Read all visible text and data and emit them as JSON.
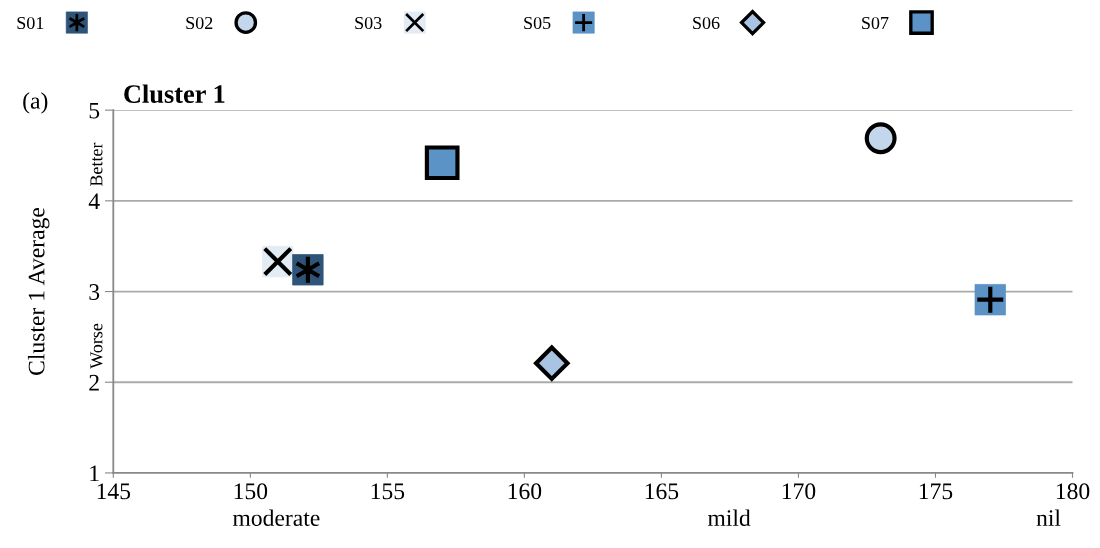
{
  "chart_data": {
    "type": "scatter",
    "title": "Cluster 1",
    "ylabel": "Cluster 1 Average",
    "annotations": [
      "(a)",
      "Better",
      "Worse",
      "moderate",
      "mild",
      "nil"
    ],
    "series": [
      {
        "name": "S01",
        "color": "#2f5479",
        "marker": "square",
        "x": [
          152.1
        ],
        "values": [
          3.24
        ]
      },
      {
        "name": "S02",
        "color": "#c3d6eb",
        "marker": "circle",
        "x": [
          173
        ],
        "values": [
          4.69
        ]
      },
      {
        "name": "S03",
        "color": "#e3ebf4",
        "marker": "square",
        "x": [
          151
        ],
        "values": [
          3.33
        ]
      },
      {
        "name": "S05",
        "color": "#5b93c7",
        "marker": "square",
        "x": [
          177
        ],
        "values": [
          2.91
        ]
      },
      {
        "name": "S06",
        "color": "#a9c4e2",
        "marker": "diamond",
        "x": [
          161
        ],
        "values": [
          2.21
        ]
      },
      {
        "name": "S07",
        "color": "#5b93c7",
        "marker": "square",
        "x": [
          157
        ],
        "values": [
          4.42
        ]
      }
    ],
    "xlim": [
      145,
      180
    ],
    "xticks": [
      145,
      150,
      155,
      160,
      165,
      170,
      175,
      180
    ],
    "ylim": [
      1,
      5
    ],
    "yticks": [
      1,
      2,
      3,
      4,
      5
    ],
    "grid": "y",
    "legend": "top"
  }
}
